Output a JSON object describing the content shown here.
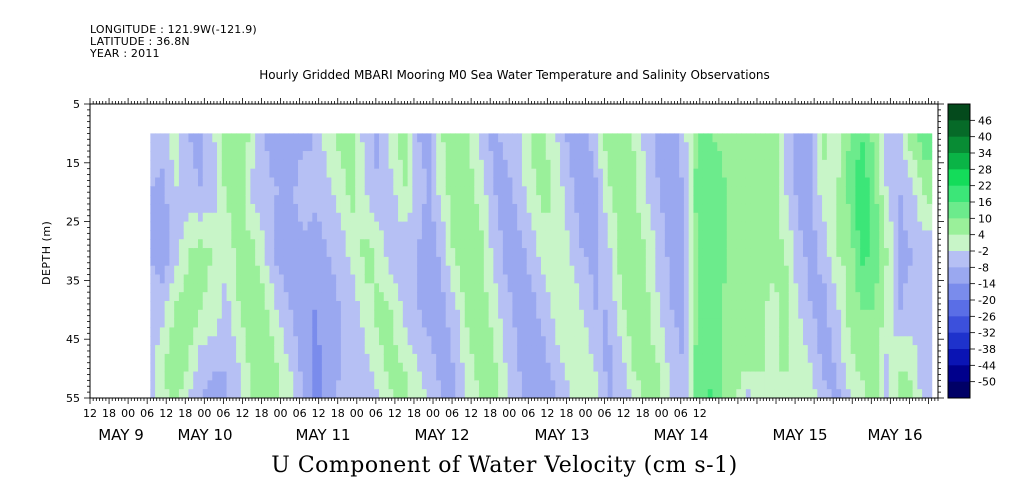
{
  "header": {
    "longitude": "LONGITUDE : 121.9W(-121.9)",
    "latitude": "LATITUDE : 36.8N",
    "year": "YEAR : 2011",
    "title": "Hourly Gridded MBARI Mooring M0 Sea Water Temperature and Salinity Observations"
  },
  "chart_data": {
    "type": "heatmap",
    "title": "Hourly Gridded MBARI Mooring M0 Sea Water Temperature and Salinity Observations",
    "bottom_title": "U Component of Water Velocity (cm s-1)",
    "ylabel": "DEPTH (m)",
    "y_range": [
      5,
      55
    ],
    "y_reversed": true,
    "y_ticks": [
      5,
      15,
      25,
      35,
      45,
      55
    ],
    "data_depth_range": [
      10,
      55
    ],
    "x_range": [
      "2011-05-08 12:00",
      "2011-05-16 15:00"
    ],
    "data_time_range": [
      "2011-05-08 19:00",
      "2011-05-16 14:00"
    ],
    "x_hour_labels": [
      "12",
      "18",
      "00",
      "06",
      "12",
      "18",
      "00",
      "06",
      "12",
      "18",
      "00",
      "06",
      "12",
      "18",
      "00",
      "06",
      "12",
      "18",
      "00",
      "06",
      "12",
      "18",
      "00",
      "06",
      "12",
      "18",
      "00",
      "06",
      "12",
      "18",
      "00",
      "06",
      "12"
    ],
    "x_day_labels": [
      "MAY  9",
      "MAY 10",
      "MAY 11",
      "MAY 12",
      "MAY 13",
      "MAY 14",
      "MAY 15",
      "MAY 16"
    ],
    "colorbar": {
      "levels": [
        -50,
        -44,
        -38,
        -32,
        -26,
        -20,
        -14,
        -8,
        -2,
        4,
        10,
        16,
        22,
        28,
        34,
        40,
        46
      ],
      "colors": [
        "#000066",
        "#00008c",
        "#0a14b4",
        "#1e32cc",
        "#3c50dc",
        "#5a6ee6",
        "#7a8cec",
        "#9aa8f0",
        "#b6c0f4",
        "#c8f5c8",
        "#9af09a",
        "#6ceb8c",
        "#3ce678",
        "#14dc5a",
        "#0ab446",
        "#088c34",
        "#066a28",
        "#044a1c"
      ],
      "labels": [
        "46",
        "40",
        "34",
        "28",
        "22",
        "16",
        "10",
        "4",
        "-2",
        "-8",
        "-14",
        "-20",
        "-26",
        "-32",
        "-38",
        "-44",
        "-50"
      ]
    },
    "depths": [
      10,
      20,
      30,
      40,
      50,
      55
    ],
    "columns": [
      {
        "t": 19,
        "v": [
          -6,
          -8,
          -8,
          -6,
          -4,
          -4
        ]
      },
      {
        "t": 23,
        "v": [
          -4,
          -10,
          -12,
          -4,
          4,
          2
        ]
      },
      {
        "t": 27,
        "v": [
          2,
          -2,
          -6,
          6,
          8,
          6
        ]
      },
      {
        "t": 31,
        "v": [
          -8,
          -6,
          4,
          8,
          4,
          -2
        ]
      },
      {
        "t": 35,
        "v": [
          -10,
          -8,
          6,
          4,
          -6,
          -8
        ]
      },
      {
        "t": 39,
        "v": [
          -2,
          -6,
          4,
          2,
          -8,
          -10
        ]
      },
      {
        "t": 43,
        "v": [
          8,
          6,
          -2,
          -4,
          -8,
          -8
        ]
      },
      {
        "t": 47,
        "v": [
          10,
          8,
          8,
          4,
          -2,
          -4
        ]
      },
      {
        "t": 51,
        "v": [
          2,
          -4,
          6,
          10,
          6,
          4
        ]
      },
      {
        "t": 55,
        "v": [
          -8,
          -6,
          -2,
          6,
          10,
          8
        ]
      },
      {
        "t": 59,
        "v": [
          -12,
          -8,
          -10,
          -2,
          4,
          6
        ]
      },
      {
        "t": 63,
        "v": [
          -14,
          -10,
          -12,
          -8,
          -2,
          0
        ]
      },
      {
        "t": 67,
        "v": [
          -10,
          -4,
          -10,
          -12,
          -10,
          -8
        ]
      },
      {
        "t": 71,
        "v": [
          -8,
          -6,
          -12,
          -14,
          -16,
          -16
        ]
      },
      {
        "t": 75,
        "v": [
          2,
          -4,
          -8,
          -10,
          -12,
          -12
        ]
      },
      {
        "t": 79,
        "v": [
          6,
          2,
          -6,
          -8,
          -8,
          -6
        ]
      },
      {
        "t": 83,
        "v": [
          6,
          6,
          2,
          -6,
          -6,
          -4
        ]
      },
      {
        "t": 87,
        "v": [
          -6,
          -2,
          6,
          2,
          -4,
          -6
        ]
      },
      {
        "t": 91,
        "v": [
          -10,
          -8,
          2,
          6,
          2,
          -2
        ]
      },
      {
        "t": 95,
        "v": [
          2,
          -4,
          -6,
          4,
          6,
          4
        ]
      },
      {
        "t": 99,
        "v": [
          8,
          4,
          -6,
          -4,
          4,
          6
        ]
      },
      {
        "t": 103,
        "v": [
          -8,
          -4,
          -8,
          -8,
          -2,
          2
        ]
      },
      {
        "t": 107,
        "v": [
          -10,
          -10,
          -12,
          -10,
          -6,
          -4
        ]
      },
      {
        "t": 111,
        "v": [
          4,
          2,
          -6,
          -10,
          -10,
          -8
        ]
      },
      {
        "t": 115,
        "v": [
          8,
          8,
          6,
          -4,
          -8,
          -8
        ]
      },
      {
        "t": 119,
        "v": [
          6,
          6,
          10,
          6,
          2,
          -2
        ]
      },
      {
        "t": 123,
        "v": [
          -4,
          2,
          6,
          8,
          6,
          4
        ]
      },
      {
        "t": 127,
        "v": [
          -10,
          -8,
          -4,
          2,
          6,
          6
        ]
      },
      {
        "t": 131,
        "v": [
          -6,
          -10,
          -10,
          -6,
          -2,
          0
        ]
      },
      {
        "t": 135,
        "v": [
          -4,
          -6,
          -10,
          -10,
          -8,
          -6
        ]
      },
      {
        "t": 139,
        "v": [
          6,
          2,
          -6,
          -10,
          -12,
          -12
        ]
      },
      {
        "t": 143,
        "v": [
          6,
          6,
          2,
          -6,
          -10,
          -12
        ]
      },
      {
        "t": 147,
        "v": [
          -2,
          2,
          4,
          2,
          -6,
          -8
        ]
      },
      {
        "t": 151,
        "v": [
          -10,
          -6,
          -2,
          4,
          2,
          -4
        ]
      },
      {
        "t": 155,
        "v": [
          -14,
          -12,
          -8,
          -2,
          4,
          4
        ]
      },
      {
        "t": 159,
        "v": [
          -4,
          -10,
          -10,
          -8,
          -2,
          2
        ]
      },
      {
        "t": 163,
        "v": [
          8,
          2,
          -4,
          -8,
          -10,
          -8
        ]
      },
      {
        "t": 167,
        "v": [
          10,
          8,
          6,
          2,
          -6,
          -8
        ]
      },
      {
        "t": 171,
        "v": [
          4,
          6,
          8,
          8,
          4,
          -2
        ]
      },
      {
        "t": 175,
        "v": [
          -4,
          -2,
          4,
          6,
          8,
          6
        ]
      },
      {
        "t": 179,
        "v": [
          -10,
          -8,
          -4,
          -2,
          4,
          4
        ]
      },
      {
        "t": 183,
        "v": [
          -12,
          -12,
          -10,
          -8,
          -4,
          -2
        ]
      },
      {
        "t": 187,
        "v": [
          -4,
          -8,
          -10,
          -10,
          -8,
          -6
        ]
      },
      {
        "t": 191,
        "v": [
          10,
          12,
          10,
          10,
          12,
          12
        ]
      },
      {
        "t": 195,
        "v": [
          10,
          16,
          14,
          10,
          14,
          18
        ]
      },
      {
        "t": 199,
        "v": [
          8,
          12,
          12,
          10,
          10,
          10
        ]
      },
      {
        "t": 203,
        "v": [
          6,
          6,
          6,
          6,
          6,
          6
        ]
      },
      {
        "t": 207,
        "v": [
          4,
          4,
          4,
          4,
          4,
          -4
        ]
      },
      {
        "t": 211,
        "v": [
          6,
          6,
          4,
          6,
          4,
          4
        ]
      },
      {
        "t": 215,
        "v": [
          10,
          8,
          6,
          2,
          4,
          2
        ]
      },
      {
        "t": 219,
        "v": [
          -6,
          -2,
          4,
          6,
          4,
          2
        ]
      },
      {
        "t": 223,
        "v": [
          -10,
          -10,
          -6,
          -2,
          4,
          4
        ]
      },
      {
        "t": 227,
        "v": [
          -8,
          -10,
          -10,
          -8,
          -2,
          2
        ]
      },
      {
        "t": 231,
        "v": [
          6,
          2,
          -6,
          -10,
          -10,
          -6
        ]
      },
      {
        "t": 235,
        "v": [
          -2,
          4,
          4,
          -4,
          -8,
          -10
        ]
      },
      {
        "t": 239,
        "v": [
          10,
          12,
          6,
          6,
          2,
          -4
        ]
      },
      {
        "t": 243,
        "v": [
          16,
          22,
          18,
          10,
          6,
          2
        ]
      },
      {
        "t": 247,
        "v": [
          8,
          12,
          14,
          10,
          8,
          6
        ]
      },
      {
        "t": 251,
        "v": [
          -8,
          -2,
          4,
          2,
          -4,
          -6
        ]
      },
      {
        "t": 255,
        "v": [
          -4,
          -8,
          -10,
          -8,
          4,
          8
        ]
      },
      {
        "t": 259,
        "v": [
          10,
          -4,
          -8,
          -6,
          2,
          6
        ]
      },
      {
        "t": 263,
        "v": [
          14,
          6,
          -6,
          -8,
          -8,
          -6
        ]
      }
    ]
  }
}
